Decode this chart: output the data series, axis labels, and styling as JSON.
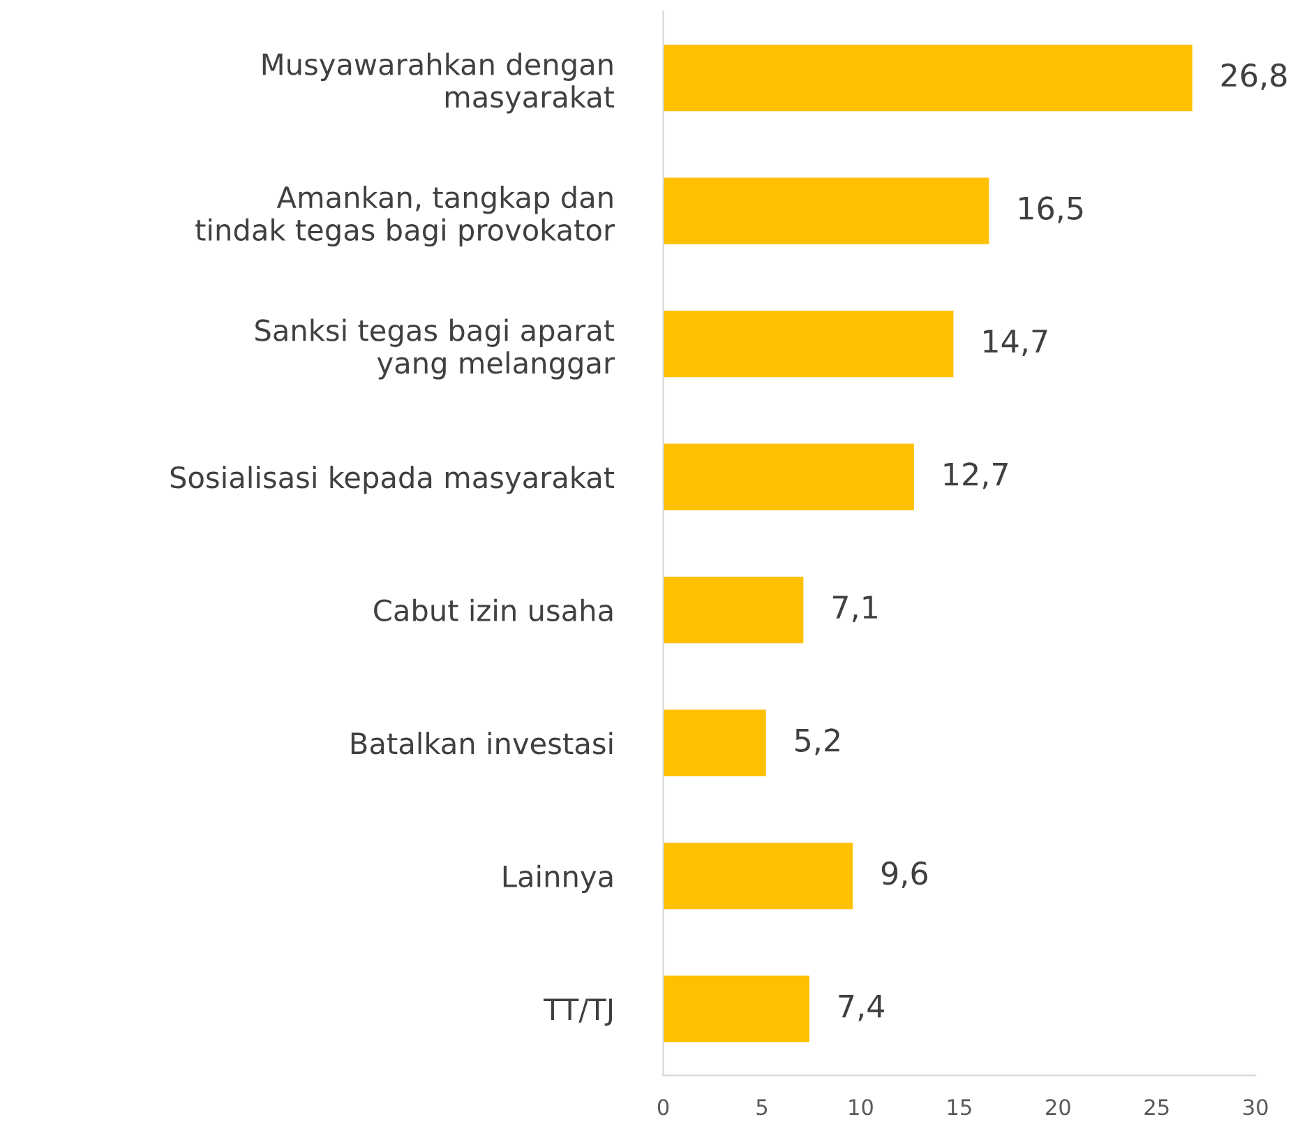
{
  "chart_data": {
    "type": "bar",
    "orientation": "horizontal",
    "categories": [
      "Musyawarahkan dengan\nmasyarakat",
      "Amankan, tangkap dan\ntindak tegas bagi provokator",
      "Sanksi tegas bagi aparat\nyang melanggar",
      "Sosialisasi kepada masyarakat",
      "Cabut izin usaha",
      "Batalkan investasi",
      "Lainnya",
      "TT/TJ"
    ],
    "values": [
      26.8,
      16.5,
      14.7,
      12.7,
      7.1,
      5.2,
      9.6,
      7.4
    ],
    "value_labels": [
      "26,8",
      "16,5",
      "14,7",
      "12,7",
      "7,1",
      "5,2",
      "9,6",
      "7,4"
    ],
    "color": "#ffc000",
    "xlim": [
      0,
      30
    ],
    "xticks": [
      0,
      5,
      10,
      15,
      20,
      25,
      30
    ],
    "grid": false,
    "legend": false
  }
}
